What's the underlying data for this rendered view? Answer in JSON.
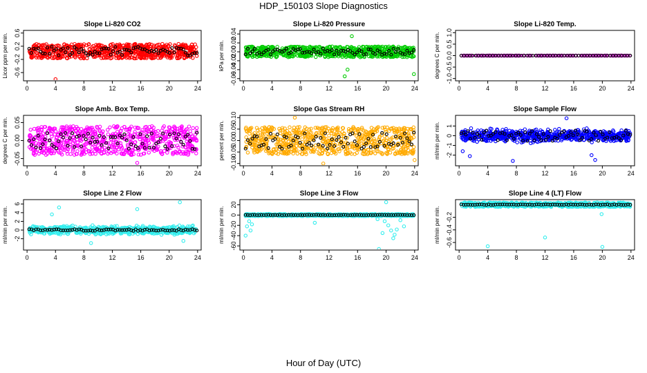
{
  "page_title": "HDP_150103  Slope Diagnostics",
  "x_caption": "Hour of Day (UTC)",
  "chart_data": [
    {
      "type": "scatter",
      "title": "Slope Li-820 CO2",
      "ylabel": "Licor ppm per min.",
      "xlim": [
        -0.5,
        24.5
      ],
      "ylim": [
        -0.85,
        0.68
      ],
      "xticks": [
        0,
        4,
        8,
        12,
        16,
        20,
        24
      ],
      "yticks": [
        "-0.6",
        "-0.2",
        "0.2",
        "0.6"
      ],
      "ytick_values": [
        -0.6,
        -0.2,
        0.2,
        0.6
      ],
      "color": "#ff0000",
      "spread": 0.22,
      "center": 0.05,
      "outliers": [
        [
          4.0,
          -0.8
        ]
      ],
      "noise": "uniform"
    },
    {
      "type": "scatter",
      "title": "Slope Li-820 Pressure",
      "ylabel": "kPa per min.",
      "xlim": [
        -0.5,
        24.5
      ],
      "ylim": [
        -0.065,
        0.048
      ],
      "xticks": [
        0,
        4,
        8,
        12,
        16,
        20,
        24
      ],
      "yticks": [
        "-0.06",
        "-0.04",
        "-0.02",
        "0.00",
        "0.02",
        "0.04"
      ],
      "ytick_values": [
        -0.06,
        -0.04,
        -0.02,
        0.0,
        0.02,
        0.04
      ],
      "color": "#00cc00",
      "spread": 0.012,
      "center": 0.0,
      "outliers": [
        [
          14.2,
          -0.055
        ],
        [
          15.2,
          0.035
        ],
        [
          23.9,
          -0.05
        ],
        [
          14.6,
          -0.04
        ]
      ],
      "noise": "uniform"
    },
    {
      "type": "scatter",
      "title": "Slope Li-820 Temp.",
      "ylabel": "degrees C per min.",
      "xlim": [
        -0.5,
        24.5
      ],
      "ylim": [
        -1.1,
        1.1
      ],
      "xticks": [
        0,
        4,
        8,
        12,
        16,
        20,
        24
      ],
      "yticks": [
        "-1.0",
        "-0.5",
        "0.0",
        "0.5",
        "1.0"
      ],
      "ytick_values": [
        -1.0,
        -0.5,
        0.0,
        0.5,
        1.0
      ],
      "color": "#cc33cc",
      "spread": 0.0,
      "center": 0.0,
      "outliers": [],
      "noise": "flat"
    },
    {
      "type": "scatter",
      "title": "Slope Amb. Box Temp.",
      "ylabel": "degrees C per min.",
      "xlim": [
        -0.5,
        24.5
      ],
      "ylim": [
        -0.07,
        0.07
      ],
      "xticks": [
        0,
        4,
        8,
        12,
        16,
        20,
        24
      ],
      "yticks": [
        "-0.05",
        "0.00",
        "0.05"
      ],
      "ytick_values": [
        -0.05,
        0.0,
        0.05
      ],
      "color": "#ff00ff",
      "spread": 0.04,
      "center": 0.0,
      "outliers": [
        [
          15.5,
          -0.062
        ]
      ],
      "noise": "uniform"
    },
    {
      "type": "scatter",
      "title": "Slope Gas Stream RH",
      "ylabel": "percent per min.",
      "xlim": [
        -0.5,
        24.5
      ],
      "ylim": [
        -0.11,
        0.11
      ],
      "xticks": [
        0,
        4,
        8,
        12,
        16,
        20,
        24
      ],
      "yticks": [
        "-0.10",
        "-0.05",
        "0.00",
        "0.05",
        "0.10"
      ],
      "ytick_values": [
        -0.1,
        -0.05,
        0.0,
        0.05,
        0.1
      ],
      "color": "#ffaa00",
      "spread": 0.06,
      "center": 0.0,
      "outliers": [
        [
          7.2,
          0.1
        ],
        [
          11.2,
          -0.1
        ],
        [
          24.0,
          -0.085
        ]
      ],
      "noise": "uniform"
    },
    {
      "type": "scatter",
      "title": "Slope Sample Flow",
      "ylabel": "ml/min per min.",
      "xlim": [
        -0.5,
        24.5
      ],
      "ylim": [
        -3.1,
        2.1
      ],
      "xticks": [
        0,
        4,
        8,
        12,
        16,
        20,
        24
      ],
      "yticks": [
        "-2",
        "-1",
        "0",
        "1"
      ],
      "ytick_values": [
        -2,
        -1,
        0,
        1
      ],
      "color": "#0000ff",
      "spread": 0.9,
      "center": 0.0,
      "outliers": [
        [
          7.5,
          -2.6
        ],
        [
          15.0,
          1.8
        ],
        [
          0.5,
          -1.6
        ],
        [
          18.5,
          -2.0
        ],
        [
          19.0,
          -2.5
        ],
        [
          1.5,
          -2.1
        ]
      ],
      "noise": "normal"
    },
    {
      "type": "scatter",
      "title": "Slope Line 2 Flow",
      "ylabel": "ml/min per min.",
      "xlim": [
        -0.5,
        24.5
      ],
      "ylim": [
        -4.6,
        7.0
      ],
      "xticks": [
        0,
        4,
        8,
        12,
        16,
        20,
        24
      ],
      "yticks": [
        "-2",
        "0",
        "2",
        "4",
        "6"
      ],
      "ytick_values": [
        -2,
        0,
        2,
        4,
        6
      ],
      "color": "#33eeee",
      "spread": 1.4,
      "center": 0.0,
      "outliers": [
        [
          21.5,
          6.4
        ],
        [
          4.5,
          5.2
        ],
        [
          3.5,
          3.6
        ],
        [
          15.5,
          4.8
        ],
        [
          22.0,
          -2.5
        ],
        [
          9.0,
          -3.0
        ]
      ],
      "noise": "normal"
    },
    {
      "type": "scatter",
      "title": "Slope Line 3 Flow",
      "ylabel": "ml/min per min.",
      "xlim": [
        -0.5,
        24.5
      ],
      "ylim": [
        -68,
        30
      ],
      "xticks": [
        0,
        4,
        8,
        12,
        16,
        20,
        24
      ],
      "yticks": [
        "-60",
        "-40",
        "-20",
        "0",
        "20"
      ],
      "ytick_values": [
        -60,
        -40,
        -20,
        0,
        20
      ],
      "color": "#33eeee",
      "spread": 2.0,
      "center": 0.0,
      "outliers": [
        [
          0.3,
          -40
        ],
        [
          0.5,
          -22
        ],
        [
          0.8,
          -12
        ],
        [
          1.0,
          -30
        ],
        [
          1.2,
          -18
        ],
        [
          10.0,
          -15
        ],
        [
          19.0,
          -66
        ],
        [
          19.5,
          -35
        ],
        [
          20.0,
          25
        ],
        [
          20.3,
          -20
        ],
        [
          20.7,
          -30
        ],
        [
          21.0,
          -45
        ],
        [
          21.5,
          -28
        ],
        [
          22.0,
          -10
        ],
        [
          18.8,
          -8
        ],
        [
          19.8,
          -12
        ],
        [
          21.2,
          -38
        ],
        [
          22.5,
          -22
        ]
      ],
      "noise": "uniform"
    },
    {
      "type": "scatter",
      "title": "Slope Line 4 (LT) Flow",
      "ylabel": "ml/min per min.",
      "xlim": [
        -0.5,
        24.5
      ],
      "ylim": [
        -0.72,
        0.08
      ],
      "xticks": [
        0,
        4,
        8,
        12,
        16,
        20,
        24
      ],
      "yticks": [
        "-0.6",
        "-0.4",
        "-0.2"
      ],
      "ytick_values": [
        -0.6,
        -0.4,
        -0.2
      ],
      "color": "#33eeee",
      "spread": 0.035,
      "center": 0.0,
      "outliers": [
        [
          4.0,
          -0.66
        ],
        [
          12.0,
          -0.52
        ],
        [
          20.0,
          -0.67
        ],
        [
          19.9,
          -0.15
        ]
      ],
      "noise": "uniform"
    }
  ]
}
